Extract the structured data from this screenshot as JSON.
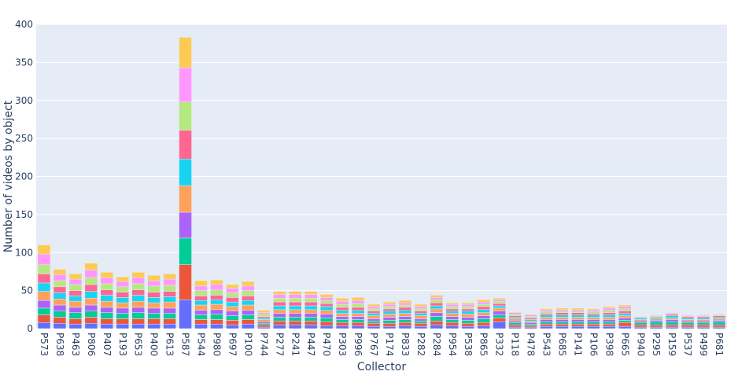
{
  "chart_data": {
    "type": "bar",
    "stacked": true,
    "xlabel": "Collector",
    "ylabel": "Number of videos by object",
    "ylim": [
      0,
      400
    ],
    "yticks": [
      0,
      50,
      100,
      150,
      200,
      250,
      300,
      350,
      400
    ],
    "grid": true,
    "legend": "none",
    "categories": [
      "P573",
      "P638",
      "P463",
      "P806",
      "P407",
      "P193",
      "P653",
      "P400",
      "P613",
      "P587",
      "P544",
      "P980",
      "P697",
      "P100",
      "P744",
      "P277",
      "P241",
      "P447",
      "P470",
      "P303",
      "P996",
      "P767",
      "P174",
      "P833",
      "P282",
      "P284",
      "P954",
      "P538",
      "P865",
      "P332",
      "P118",
      "P478",
      "P543",
      "P685",
      "P141",
      "P106",
      "P398",
      "P665",
      "P940",
      "P295",
      "P159",
      "P537",
      "P499",
      "P681"
    ],
    "totals": [
      110,
      78,
      73,
      86,
      74,
      68,
      74,
      70,
      72,
      383,
      63,
      64,
      58,
      62,
      24,
      49,
      49,
      49,
      45,
      40,
      41,
      32,
      35,
      37,
      32,
      44,
      34,
      34,
      38,
      40,
      22,
      19,
      26,
      27,
      27,
      26,
      29,
      31,
      16,
      18,
      21,
      18,
      18,
      19
    ],
    "colors": [
      "#636efa",
      "#ef553b",
      "#00cc96",
      "#ab63fa",
      "#ffa15a",
      "#19d3f3",
      "#ff6692",
      "#b6e880",
      "#ff97ff",
      "#fecb52"
    ],
    "series": [
      {
        "values": [
          8,
          7,
          6,
          7,
          6,
          6,
          6,
          6,
          6,
          38,
          6,
          6,
          5,
          6,
          2,
          5,
          5,
          5,
          4,
          4,
          4,
          3,
          3,
          4,
          3,
          5,
          4,
          3,
          4,
          9,
          2,
          2,
          3,
          3,
          3,
          3,
          3,
          3,
          2,
          2,
          2,
          2,
          2,
          2
        ]
      },
      {
        "values": [
          10,
          8,
          7,
          8,
          7,
          7,
          7,
          7,
          7,
          46,
          6,
          6,
          6,
          6,
          3,
          5,
          5,
          5,
          5,
          4,
          4,
          4,
          4,
          4,
          4,
          5,
          4,
          4,
          4,
          5,
          3,
          2,
          3,
          3,
          3,
          3,
          3,
          5,
          3,
          3,
          3,
          3,
          3,
          3
        ]
      },
      {
        "values": [
          9,
          8,
          8,
          8,
          8,
          7,
          8,
          7,
          7,
          35,
          6,
          7,
          6,
          6,
          2,
          5,
          5,
          5,
          5,
          4,
          4,
          3,
          4,
          4,
          3,
          6,
          4,
          4,
          5,
          4,
          3,
          2,
          3,
          3,
          3,
          3,
          3,
          3,
          3,
          4,
          4,
          3,
          3,
          4
        ]
      },
      {
        "values": [
          10,
          8,
          7,
          8,
          7,
          7,
          7,
          7,
          7,
          34,
          6,
          6,
          6,
          6,
          2,
          5,
          5,
          5,
          5,
          4,
          4,
          3,
          4,
          4,
          3,
          5,
          4,
          4,
          4,
          5,
          2,
          2,
          3,
          3,
          3,
          3,
          3,
          3,
          2,
          2,
          3,
          2,
          2,
          2
        ]
      },
      {
        "values": [
          12,
          8,
          8,
          9,
          8,
          7,
          8,
          7,
          8,
          35,
          7,
          7,
          6,
          7,
          3,
          5,
          5,
          5,
          5,
          4,
          4,
          4,
          4,
          4,
          4,
          5,
          4,
          4,
          4,
          4,
          3,
          2,
          3,
          3,
          3,
          3,
          3,
          3,
          2,
          2,
          2,
          2,
          2,
          2
        ]
      },
      {
        "values": [
          11,
          8,
          7,
          9,
          8,
          7,
          8,
          7,
          7,
          35,
          6,
          6,
          6,
          6,
          2,
          5,
          5,
          5,
          5,
          4,
          4,
          3,
          4,
          4,
          3,
          4,
          3,
          4,
          4,
          3,
          2,
          2,
          3,
          3,
          3,
          3,
          3,
          3,
          2,
          2,
          3,
          2,
          2,
          2
        ]
      },
      {
        "values": [
          12,
          8,
          7,
          9,
          7,
          7,
          7,
          7,
          7,
          38,
          6,
          6,
          6,
          6,
          2,
          5,
          5,
          5,
          4,
          4,
          4,
          3,
          3,
          4,
          3,
          4,
          3,
          3,
          4,
          3,
          2,
          2,
          2,
          3,
          3,
          2,
          3,
          3,
          1,
          1,
          2,
          2,
          2,
          2
        ]
      },
      {
        "values": [
          12,
          8,
          8,
          9,
          8,
          7,
          8,
          8,
          8,
          37,
          7,
          7,
          6,
          7,
          3,
          5,
          5,
          5,
          4,
          4,
          5,
          3,
          3,
          3,
          3,
          4,
          3,
          3,
          3,
          3,
          2,
          2,
          2,
          2,
          2,
          2,
          3,
          3,
          1,
          1,
          1,
          1,
          1,
          1
        ]
      },
      {
        "values": [
          14,
          8,
          7,
          10,
          8,
          7,
          8,
          7,
          8,
          45,
          6,
          7,
          6,
          6,
          2,
          5,
          5,
          5,
          4,
          4,
          4,
          3,
          3,
          3,
          3,
          3,
          3,
          3,
          3,
          2,
          2,
          2,
          2,
          2,
          2,
          2,
          3,
          3,
          0,
          1,
          1,
          1,
          1,
          1
        ]
      },
      {
        "values": [
          12,
          7,
          7,
          9,
          7,
          6,
          7,
          7,
          7,
          40,
          7,
          6,
          5,
          6,
          3,
          4,
          4,
          4,
          4,
          4,
          4,
          3,
          3,
          3,
          3,
          3,
          2,
          2,
          3,
          2,
          1,
          1,
          2,
          2,
          2,
          2,
          2,
          2,
          0,
          0,
          0,
          0,
          0,
          0
        ]
      }
    ]
  }
}
